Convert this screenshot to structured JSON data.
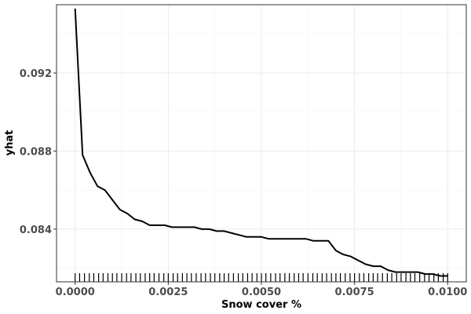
{
  "chart_data": {
    "type": "line",
    "xlabel": "Snow cover %",
    "ylabel": "yhat",
    "xlim": [
      -0.0005,
      0.0105
    ],
    "ylim": [
      0.0813,
      0.0955
    ],
    "x_ticks": [
      0.0,
      0.0025,
      0.005,
      0.0075,
      0.01
    ],
    "x_tick_labels": [
      "0.0000",
      "0.0025",
      "0.0050",
      "0.0075",
      "0.0100"
    ],
    "y_ticks": [
      0.084,
      0.088,
      0.092
    ],
    "y_tick_labels": [
      "0.084",
      "0.088",
      "0.092"
    ],
    "grid": true,
    "legend": "none",
    "line_color": "#000000",
    "series": [
      {
        "x": [
          0.0,
          0.0002,
          0.0004,
          0.0006,
          0.0008,
          0.001,
          0.0012,
          0.0014,
          0.0016,
          0.0018,
          0.002,
          0.0022,
          0.0024,
          0.0026,
          0.0028,
          0.003,
          0.0032,
          0.0034,
          0.0036,
          0.0038,
          0.004,
          0.0042,
          0.0044,
          0.0046,
          0.0048,
          0.005,
          0.0052,
          0.0054,
          0.0056,
          0.0058,
          0.006,
          0.0062,
          0.0064,
          0.0066,
          0.0068,
          0.007,
          0.0072,
          0.0074,
          0.0076,
          0.0078,
          0.008,
          0.0082,
          0.0084,
          0.0086,
          0.0088,
          0.009,
          0.0092,
          0.0094,
          0.0096,
          0.0098,
          0.01
        ],
        "y": [
          0.0953,
          0.0878,
          0.0869,
          0.0862,
          0.086,
          0.0855,
          0.085,
          0.0848,
          0.0845,
          0.0844,
          0.0842,
          0.0842,
          0.0842,
          0.0841,
          0.0841,
          0.0841,
          0.0841,
          0.084,
          0.084,
          0.0839,
          0.0839,
          0.0838,
          0.0837,
          0.0836,
          0.0836,
          0.0836,
          0.0835,
          0.0835,
          0.0835,
          0.0835,
          0.0835,
          0.0835,
          0.0834,
          0.0834,
          0.0834,
          0.0829,
          0.0827,
          0.0826,
          0.0824,
          0.0822,
          0.0821,
          0.0821,
          0.0819,
          0.0818,
          0.0818,
          0.0818,
          0.0818,
          0.0817,
          0.0817,
          0.0816,
          0.0816
        ]
      }
    ],
    "rug_x": [
      0.0,
      0.00012,
      0.00025,
      0.00038,
      0.0005,
      0.00063,
      0.00075,
      0.00088,
      0.001,
      0.00112,
      0.00125,
      0.00138,
      0.0015,
      0.00163,
      0.00175,
      0.00188,
      0.002,
      0.00212,
      0.00225,
      0.00238,
      0.0025,
      0.00263,
      0.00275,
      0.00288,
      0.003,
      0.00312,
      0.00325,
      0.00338,
      0.0035,
      0.00363,
      0.00375,
      0.00388,
      0.004,
      0.00412,
      0.00425,
      0.00438,
      0.0045,
      0.00463,
      0.00475,
      0.00488,
      0.005,
      0.00512,
      0.00525,
      0.00538,
      0.0055,
      0.00563,
      0.00575,
      0.00588,
      0.006,
      0.00612,
      0.00625,
      0.00638,
      0.0065,
      0.00663,
      0.00675,
      0.00688,
      0.007,
      0.00712,
      0.00725,
      0.00738,
      0.0075,
      0.00763,
      0.00775,
      0.00788,
      0.008,
      0.00812,
      0.00825,
      0.00838,
      0.0085,
      0.00863,
      0.00875,
      0.00888,
      0.009,
      0.00912,
      0.00925,
      0.00938,
      0.0095,
      0.00963,
      0.00975,
      0.00988,
      0.01
    ]
  }
}
